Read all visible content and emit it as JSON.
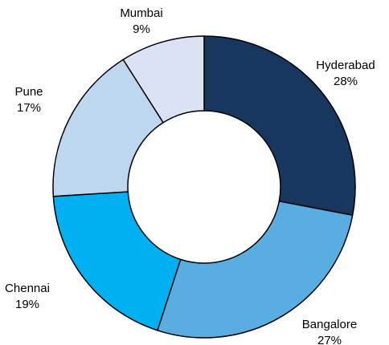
{
  "chart_data": {
    "type": "donut",
    "categories": [
      "Hyderabad",
      "Bangalore",
      "Chennai",
      "Pune",
      "Mumbai"
    ],
    "values": [
      28,
      27,
      19,
      17,
      9
    ],
    "value_labels": [
      "28%",
      "27%",
      "19%",
      "17%",
      "9%"
    ],
    "colors": [
      "#17375e",
      "#5aade0",
      "#00b0f0",
      "#bdd7ee",
      "#dae3f3"
    ]
  }
}
